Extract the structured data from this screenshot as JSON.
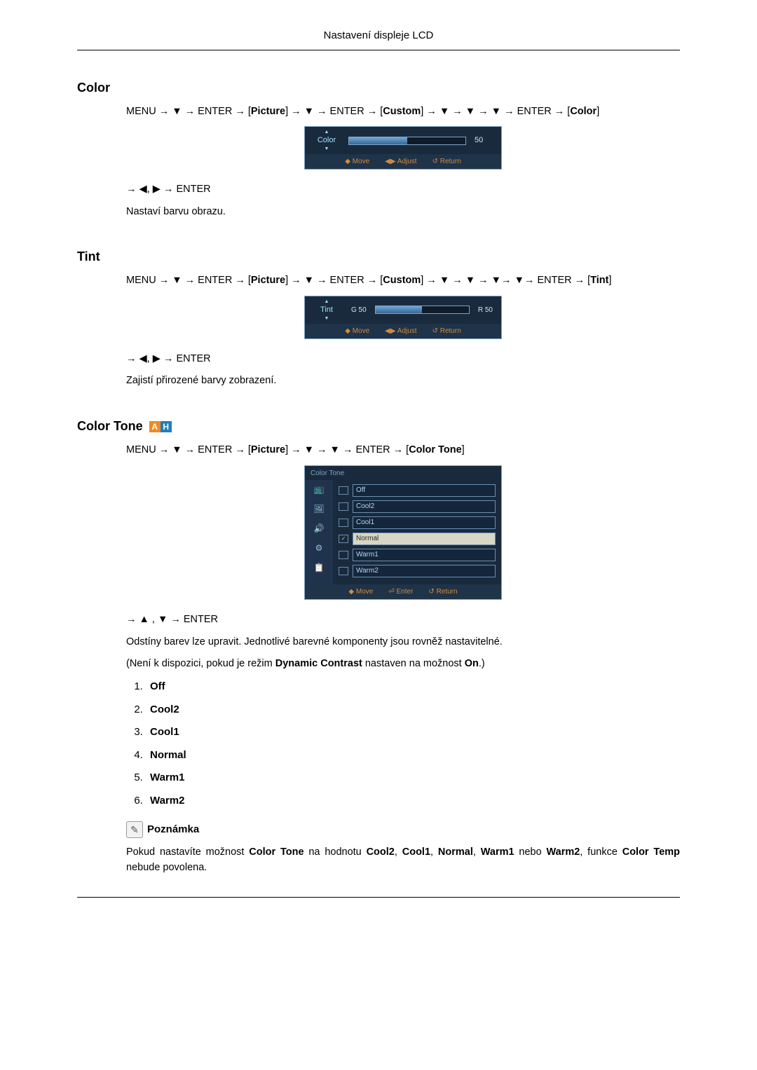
{
  "header": {
    "title": "Nastavení displeje LCD"
  },
  "sections": {
    "color": {
      "heading": "Color",
      "nav_line": "MENU → ▼ → ENTER → [Picture] → ▼ → ENTER → [Custom] → ▼ → ▼ → ▼ → ENTER → [Color]",
      "nav_bold_terms": [
        "Picture",
        "Custom",
        "Color"
      ],
      "osd": {
        "label": "Color",
        "value": 50,
        "fill_pct": 50,
        "colors": {
          "panel_bg": "#1a2a3d",
          "border": "#7fa3c6",
          "label": "#9fe0ff",
          "fill_gradient_top": "#6fa8d8",
          "fill_gradient_bottom": "#3a6591",
          "footer_text": "#d28b3e"
        },
        "footer": [
          "◆ Move",
          "◀▶ Adjust",
          "↺ Return"
        ]
      },
      "post_nav": "→ ◀, ▶ → ENTER",
      "desc": "Nastaví barvu obrazu."
    },
    "tint": {
      "heading": "Tint",
      "nav_line": "MENU → ▼ → ENTER → [Picture] → ▼ → ENTER → [Custom] → ▼ → ▼ → ▼→ ▼→ ENTER → [Tint]",
      "nav_bold_terms": [
        "Picture",
        "Custom",
        "Tint"
      ],
      "osd": {
        "label": "Tint",
        "left_label": "G 50",
        "right_label": "R 50",
        "fill_pct": 50,
        "footer": [
          "◆ Move",
          "◀▶ Adjust",
          "↺ Return"
        ]
      },
      "post_nav": "→ ◀, ▶ → ENTER",
      "desc": "Zajistí přirozené barvy zobrazení."
    },
    "colortone": {
      "heading": "Color Tone",
      "badges": [
        {
          "text": "A",
          "bg": "#f08a24"
        },
        {
          "text": "H",
          "bg": "#1e7fbf"
        }
      ],
      "nav_line": "MENU → ▼ → ENTER → [Picture] → ▼ → ▼ → ENTER → [Color Tone]",
      "nav_bold_terms": [
        "Picture",
        "Color Tone"
      ],
      "osd": {
        "title": "Color Tone",
        "side_icons": [
          "📺",
          "🖼",
          "🔊",
          "⚙",
          "📋"
        ],
        "side_icon_colors": [
          "#e6b366",
          "#9fc3e0",
          "#9fc3e0",
          "#9fc3e0",
          "#9fc3e0"
        ],
        "items": [
          "Off",
          "Cool2",
          "Cool1",
          "Normal",
          "Warm1",
          "Warm2"
        ],
        "selected_index": 3,
        "footer": [
          "◆ Move",
          "⏎ Enter",
          "↺ Return"
        ]
      },
      "post_nav": "→ ▲ , ▼ → ENTER",
      "desc1": "Odstíny barev lze upravit. Jednotlivé barevné komponenty jsou rovněž nastavitelné.",
      "desc2_pre": "(Není k dispozici, pokud je režim ",
      "desc2_b1": "Dynamic Contrast",
      "desc2_mid": " nastaven na možnost ",
      "desc2_b2": "On",
      "desc2_post": ".)",
      "options": [
        "Off",
        "Cool2",
        "Cool1",
        "Normal",
        "Warm1",
        "Warm2"
      ],
      "note_label": "Poznámka",
      "note_text_parts": {
        "pre": "Pokud nastavíte možnost ",
        "b1": "Color Tone",
        "t1": " na hodnotu ",
        "b2": "Cool2",
        "c1": ", ",
        "b3": "Cool1",
        "c2": ", ",
        "b4": "Normal",
        "c3": ", ",
        "b5": "Warm1",
        "t2": " nebo ",
        "b6": "Warm2",
        "t3": ", funkce ",
        "b7": "Color Temp",
        "post": " nebude povolena."
      }
    }
  }
}
